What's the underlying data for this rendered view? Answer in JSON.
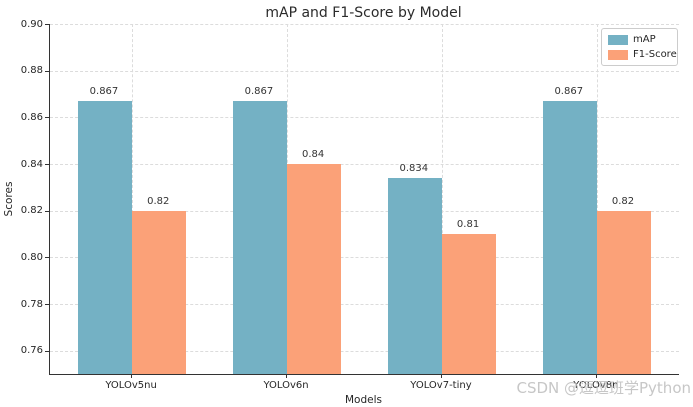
{
  "chart_data": {
    "type": "bar",
    "title": "mAP and F1-Score by Model",
    "xlabel": "Models",
    "ylabel": "Scores",
    "categories": [
      "YOLOv5nu",
      "YOLOv6n",
      "YOLOv7-tiny",
      "YOLOv8n"
    ],
    "series": [
      {
        "name": "mAP",
        "color": "#74b1c4",
        "values": [
          0.867,
          0.867,
          0.834,
          0.867
        ],
        "labels": [
          "0.867",
          "0.867",
          "0.834",
          "0.867"
        ]
      },
      {
        "name": "F1-Score",
        "color": "#fba178",
        "values": [
          0.82,
          0.84,
          0.81,
          0.82
        ],
        "labels": [
          "0.82",
          "0.84",
          "0.81",
          "0.82"
        ]
      }
    ],
    "ylim": [
      0.75,
      0.9
    ],
    "yticks": [
      0.76,
      0.78,
      0.8,
      0.82,
      0.84,
      0.86,
      0.88,
      0.9
    ],
    "ytick_labels": [
      "0.76",
      "0.78",
      "0.80",
      "0.82",
      "0.84",
      "0.86",
      "0.88",
      "0.90"
    ],
    "bar_width": 0.35,
    "grid": true,
    "grid_style": "dashed",
    "legend_position": "upper right"
  },
  "watermark": "CSDN @逗逗班学Python"
}
